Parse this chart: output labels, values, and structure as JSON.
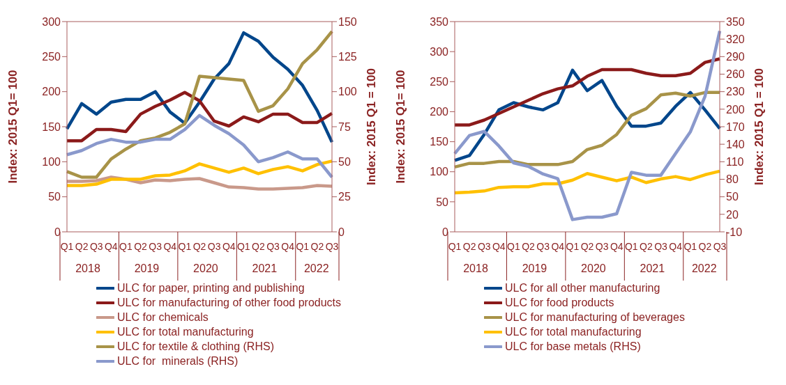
{
  "chart_data": [
    {
      "type": "line",
      "ylabel": "Index: 2015  Q1= 100",
      "y2label": "Index: 2015  Q1 = 100",
      "categories": [
        "Q1",
        "Q2",
        "Q3",
        "Q4",
        "Q1",
        "Q2",
        "Q3",
        "Q4",
        "Q1",
        "Q2",
        "Q3",
        "Q4",
        "Q1",
        "Q2",
        "Q3",
        "Q4",
        "Q1",
        "Q2",
        "Q3"
      ],
      "annotations": [
        "2018",
        "2019",
        "2020",
        "2021",
        "2022"
      ],
      "ylim": [
        0,
        300
      ],
      "yticks": [
        0,
        50,
        100,
        150,
        200,
        250,
        300
      ],
      "y2lim": [
        0,
        150
      ],
      "y2ticks": [
        0,
        25,
        50,
        75,
        100,
        125,
        150
      ],
      "legend": "bottom",
      "series": [
        {
          "name": "ULC for paper, printing and publishing",
          "color": "#00468b",
          "values": [
            147,
            183,
            168,
            185,
            189,
            189,
            200,
            171,
            155,
            185,
            218,
            240,
            284,
            272,
            249,
            232,
            209,
            173,
            128
          ]
        },
        {
          "name": "ULC for manufacturing of other food products",
          "color": "#8b1a1a",
          "values": [
            130,
            130,
            146,
            146,
            143,
            168,
            179,
            188,
            199,
            187,
            158,
            151,
            164,
            157,
            168,
            168,
            156,
            156,
            169
          ]
        },
        {
          "name": "ULC for chemicals",
          "color": "#c9998a",
          "values": [
            72,
            72,
            73,
            78,
            75,
            70,
            74,
            73,
            75,
            76,
            70,
            64,
            63,
            61,
            61,
            62,
            63,
            66,
            65
          ]
        },
        {
          "name": "ULC for total manufacturing",
          "color": "#ffc000",
          "values": [
            66,
            66,
            68,
            75,
            75,
            75,
            80,
            81,
            87,
            97,
            91,
            85,
            91,
            83,
            89,
            93,
            87,
            96,
            101
          ]
        },
        {
          "name": "ULC for textile & clothing (RHS)",
          "color": "#a89348",
          "axis": "y2",
          "values": [
            43,
            39,
            39,
            52,
            59,
            65,
            67,
            71,
            77,
            111,
            110,
            109,
            108,
            86,
            90,
            102,
            120,
            130,
            143
          ]
        },
        {
          "name": "ULC for  minerals (RHS)",
          "color": "#8a99cc",
          "axis": "y2",
          "values": [
            55,
            58,
            63,
            66,
            64,
            64,
            66,
            66,
            73,
            83,
            76,
            70,
            62,
            50,
            53,
            57,
            52,
            52,
            39
          ]
        }
      ]
    },
    {
      "type": "line",
      "ylabel": "Index: 2015  Q1= 100",
      "y2label": "Index: 2015  Q1 = 100",
      "categories": [
        "Q1",
        "Q2",
        "Q3",
        "Q4",
        "Q1",
        "Q2",
        "Q3",
        "Q4",
        "Q1",
        "Q2",
        "Q3",
        "Q4",
        "Q1",
        "Q2",
        "Q3",
        "Q4",
        "Q1",
        "Q2",
        "Q3"
      ],
      "annotations": [
        "2018",
        "2019",
        "2020",
        "2021",
        "2022"
      ],
      "ylim": [
        0,
        350
      ],
      "yticks": [
        0,
        50,
        100,
        150,
        200,
        250,
        300,
        350
      ],
      "y2lim": [
        -10,
        350
      ],
      "y2ticks": [
        -10,
        20,
        50,
        80,
        110,
        140,
        170,
        200,
        230,
        260,
        290,
        320,
        350
      ],
      "legend": "bottom",
      "series": [
        {
          "name": "ULC for all other manufacturing",
          "color": "#00468b",
          "values": [
            119,
            127,
            162,
            203,
            215,
            208,
            203,
            215,
            269,
            235,
            252,
            209,
            176,
            176,
            181,
            209,
            232,
            203,
            172
          ]
        },
        {
          "name": "ULC for food products",
          "color": "#8b1a1a",
          "values": [
            178,
            178,
            186,
            197,
            208,
            219,
            230,
            238,
            243,
            259,
            270,
            270,
            270,
            264,
            260,
            260,
            264,
            282,
            288
          ]
        },
        {
          "name": "ULC for manufacturing of beverages",
          "color": "#a89348",
          "values": [
            108,
            114,
            114,
            117,
            117,
            112,
            112,
            112,
            117,
            137,
            144,
            162,
            194,
            205,
            228,
            231,
            226,
            232,
            232
          ]
        },
        {
          "name": "ULC for total manufacturing",
          "color": "#ffc000",
          "values": [
            65,
            66,
            68,
            74,
            75,
            75,
            80,
            80,
            86,
            97,
            91,
            85,
            91,
            82,
            88,
            92,
            87,
            95,
            101
          ]
        },
        {
          "name": "ULC for base metals (RHS)",
          "color": "#8a99cc",
          "axis": "y2",
          "values": [
            124,
            155,
            162,
            137,
            108,
            102,
            89,
            81,
            11,
            15,
            15,
            21,
            92,
            87,
            87,
            124,
            161,
            222,
            334
          ]
        }
      ]
    }
  ]
}
